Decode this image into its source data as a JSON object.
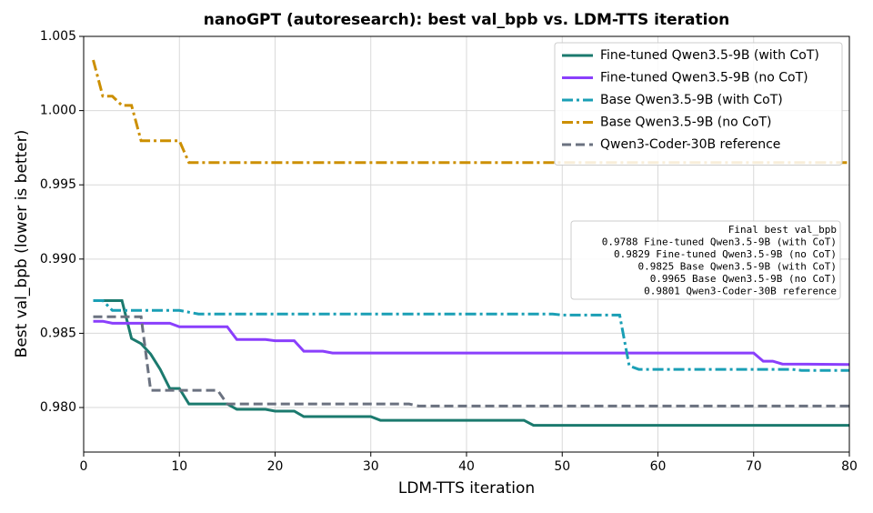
{
  "chart_data": {
    "type": "line",
    "title": "nanoGPT (autoresearch): best val_bpb vs. LDM-TTS iteration",
    "x_label": "LDM-TTS iteration",
    "y_label": "Best val_bpb (lower is better)",
    "xlim": [
      0,
      80
    ],
    "xticks": [
      0,
      10,
      20,
      30,
      40,
      50,
      60,
      70,
      80
    ],
    "ylim": [
      0.977,
      1.005
    ],
    "yticks": [
      {
        "value": 0.98,
        "label": "0.980"
      },
      {
        "value": 0.985,
        "label": "0.985"
      },
      {
        "value": 0.99,
        "label": "0.990"
      },
      {
        "value": 0.995,
        "label": "0.995"
      },
      {
        "value": 1.0,
        "label": "1.000"
      },
      {
        "value": 1.005,
        "label": "1.005"
      }
    ],
    "grid": true,
    "legend": "upper-right",
    "series": [
      {
        "name": "Fine-tuned Qwen3.5-9B (with CoT)",
        "color": "#1b7a6e",
        "dash": "solid",
        "x": [
          1,
          4,
          5,
          6,
          7,
          8,
          9,
          10,
          11,
          15,
          16,
          19,
          20,
          22,
          23,
          30,
          31,
          46,
          47,
          80
        ],
        "values": [
          0.9872,
          0.9872,
          0.98465,
          0.9843,
          0.9836,
          0.98257,
          0.98128,
          0.98128,
          0.98024,
          0.98024,
          0.97988,
          0.97988,
          0.97976,
          0.97976,
          0.97939,
          0.97939,
          0.97914,
          0.97914,
          0.9788,
          0.9788
        ]
      },
      {
        "name": "Fine-tuned Qwen3.5-9B (no CoT)",
        "color": "#8a3ffc",
        "dash": "solid",
        "x": [
          1,
          2,
          3,
          9,
          10,
          15,
          16,
          19,
          20,
          22,
          23,
          25,
          26,
          70,
          71,
          72,
          73,
          80
        ],
        "values": [
          0.98581,
          0.98581,
          0.98568,
          0.98568,
          0.98544,
          0.98544,
          0.98458,
          0.98458,
          0.9845,
          0.9845,
          0.98379,
          0.98379,
          0.98367,
          0.98367,
          0.98312,
          0.98312,
          0.98293,
          0.9829
        ]
      },
      {
        "name": "Base Qwen3.5-9B (with CoT)",
        "color": "#1a9fb5",
        "dash": "dashdot",
        "x": [
          1,
          2,
          3,
          10,
          12,
          49,
          50,
          56,
          57,
          58,
          74,
          75,
          80
        ],
        "values": [
          0.9872,
          0.9872,
          0.98654,
          0.98654,
          0.9863,
          0.9863,
          0.98623,
          0.98623,
          0.98281,
          0.98257,
          0.98257,
          0.9825,
          0.9825
        ]
      },
      {
        "name": "Base Qwen3.5-9B (no CoT)",
        "color": "#cc8f00",
        "dash": "dashdot",
        "x": [
          1,
          2,
          3,
          4,
          5,
          6,
          10,
          11,
          80
        ],
        "values": [
          1.00341,
          1.00097,
          1.00097,
          1.00035,
          1.00035,
          0.99797,
          0.99797,
          0.9965,
          0.9965
        ]
      },
      {
        "name": "Qwen3-Coder-30B reference",
        "color": "#6b7280",
        "dash": "dashed",
        "x": [
          1,
          6,
          7,
          14,
          15,
          34,
          35,
          80
        ],
        "values": [
          0.98611,
          0.98611,
          0.98116,
          0.98116,
          0.98024,
          0.98024,
          0.9801,
          0.9801
        ]
      }
    ],
    "annotation": {
      "lines": [
        "Final best val_bpb",
        "0.9788  Fine-tuned Qwen3.5-9B (with CoT)",
        "0.9829  Fine-tuned Qwen3.5-9B (no CoT)",
        "0.9825  Base Qwen3.5-9B (with CoT)",
        "0.9965  Base Qwen3.5-9B (no CoT)",
        "0.9801  Qwen3-Coder-30B reference"
      ]
    }
  }
}
